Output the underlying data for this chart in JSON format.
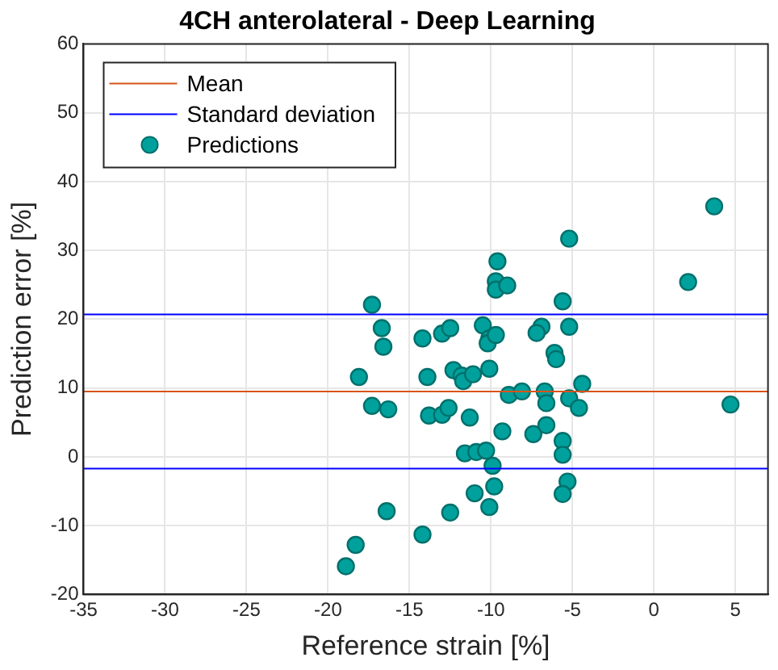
{
  "chart_data": {
    "type": "scatter",
    "title": "4CH anterolateral - Deep Learning",
    "xlabel": "Reference strain [%]",
    "ylabel": "Prediction error [%]",
    "xlim": [
      -35,
      7
    ],
    "xticks": [
      -35,
      -30,
      -25,
      -20,
      -15,
      -10,
      -5,
      0,
      5
    ],
    "ylim": [
      -20,
      60
    ],
    "yticks": [
      -20,
      -10,
      0,
      10,
      20,
      30,
      40,
      50,
      60
    ],
    "grid": true,
    "legend": "top left",
    "marker": "circle",
    "series": [
      {
        "name": "Predictions",
        "color": "#00a19c",
        "x": [
          -17.3,
          -16.7,
          -16.6,
          -18.1,
          -14.2,
          -13.9,
          -13.0,
          -12.5,
          -12.3,
          -11.8,
          -11.7,
          -11.1,
          -10.5,
          -10.1,
          -10.2,
          -9.7,
          -10.1,
          -9.6,
          -9.7,
          -9.7,
          -9.0,
          -8.9,
          -8.1,
          -17.3,
          -16.3,
          -13.8,
          -13.0,
          -12.6,
          -11.3,
          -9.3,
          -7.4,
          -11.6,
          -10.9,
          -10.3,
          -9.9,
          -9.8,
          -11.0,
          -10.1,
          -12.5,
          -16.4,
          -14.2,
          -18.3,
          -18.9,
          3.7,
          2.1,
          4.7,
          -5.2,
          -5.6,
          -5.2,
          -6.9,
          -7.2,
          -6.1,
          -6.0,
          -6.7,
          -6.6,
          -5.2,
          -4.4,
          -4.6,
          -6.6,
          -5.6,
          -5.6,
          -5.3,
          -5.6
        ],
        "values": [
          22.1,
          18.7,
          16.0,
          11.6,
          17.2,
          11.6,
          17.9,
          18.7,
          12.6,
          11.8,
          11.0,
          12.0,
          19.1,
          17.2,
          16.5,
          17.7,
          12.8,
          28.4,
          25.5,
          24.3,
          24.9,
          9.0,
          9.5,
          7.4,
          6.9,
          6.0,
          6.1,
          7.1,
          5.7,
          3.7,
          3.3,
          0.5,
          0.7,
          0.9,
          -1.3,
          -4.3,
          -5.3,
          -7.3,
          -8.1,
          -7.9,
          -11.3,
          -12.8,
          -15.9,
          36.4,
          25.4,
          7.6,
          31.7,
          22.6,
          18.9,
          18.9,
          18.0,
          15.1,
          14.2,
          9.5,
          7.8,
          8.5,
          10.6,
          7.1,
          4.6,
          2.3,
          0.3,
          -3.6,
          -5.4
        ]
      }
    ],
    "ref_lines": [
      {
        "axis": "y",
        "value": 9.5,
        "label": "Mean",
        "color": "#d95319"
      },
      {
        "axis": "y",
        "value": 20.7,
        "label": "Standard deviation",
        "color": "#0000ff"
      },
      {
        "axis": "y",
        "value": -1.7,
        "color": "#0000ff"
      }
    ]
  }
}
